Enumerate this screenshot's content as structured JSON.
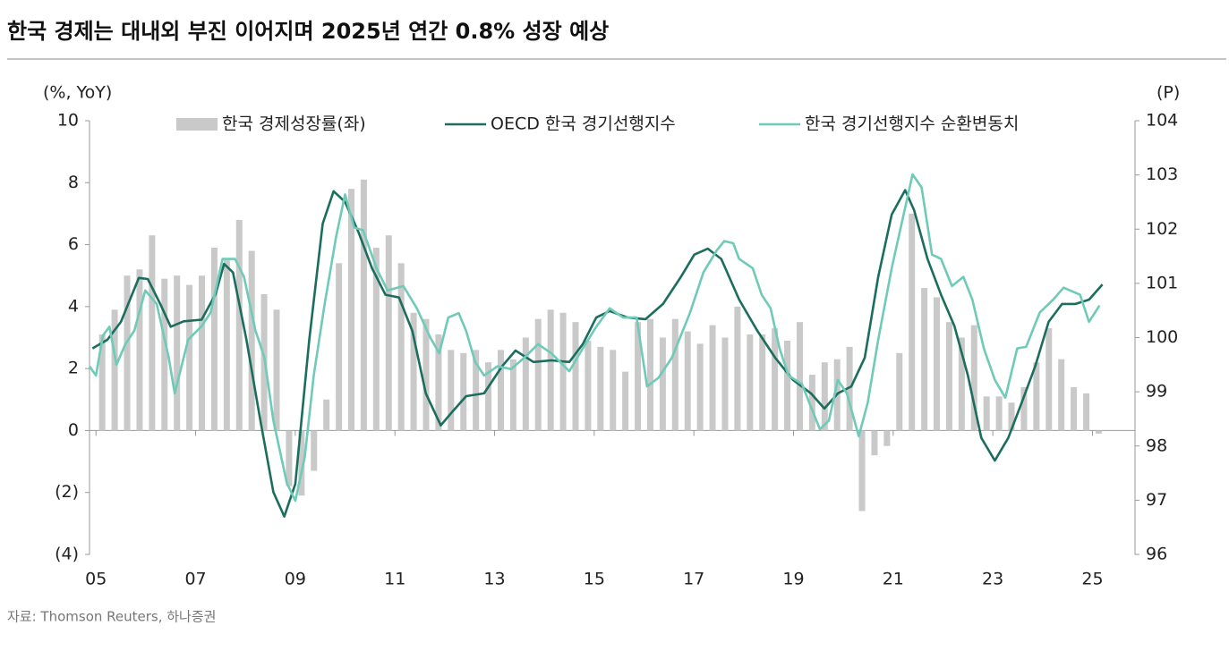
{
  "chart_data": {
    "type": "combo",
    "title": "한국 경제는 대내외 부진 이어지며 2025년 연간 0.8% 성장 예상",
    "y_label": "(%, YoY)",
    "y2_label": "(P)",
    "source": "자료: Thomson Reuters, 하나증권",
    "xlim": [
      2004.87,
      2025.8
    ],
    "xticks": [
      {
        "value": 2005,
        "label": "05"
      },
      {
        "value": 2007,
        "label": "07"
      },
      {
        "value": 2009,
        "label": "09"
      },
      {
        "value": 2011,
        "label": "11"
      },
      {
        "value": 2013,
        "label": "13"
      },
      {
        "value": 2015,
        "label": "15"
      },
      {
        "value": 2017,
        "label": "17"
      },
      {
        "value": 2019,
        "label": "19"
      },
      {
        "value": 2021,
        "label": "21"
      },
      {
        "value": 2023,
        "label": "23"
      },
      {
        "value": 2025,
        "label": "25"
      }
    ],
    "ylim": [
      -4,
      10
    ],
    "yticks": [
      {
        "value": -4,
        "label": "(4)"
      },
      {
        "value": -2,
        "label": "(2)"
      },
      0,
      2,
      4,
      6,
      8,
      10
    ],
    "y2lim": [
      96,
      104
    ],
    "y2ticks": [
      96,
      97,
      98,
      99,
      100,
      101,
      102,
      103,
      104
    ],
    "series": [
      {
        "name": "한국 경제성장률(좌)",
        "type": "bar",
        "color": "#c9c9c9",
        "x": [
          2005.125,
          2005.375,
          2005.625,
          2005.875,
          2006.125,
          2006.375,
          2006.625,
          2006.875,
          2007.125,
          2007.375,
          2007.625,
          2007.875,
          2008.125,
          2008.375,
          2008.625,
          2008.875,
          2009.125,
          2009.375,
          2009.625,
          2009.875,
          2010.125,
          2010.375,
          2010.625,
          2010.875,
          2011.125,
          2011.375,
          2011.625,
          2011.875,
          2012.125,
          2012.375,
          2012.625,
          2012.875,
          2013.125,
          2013.375,
          2013.625,
          2013.875,
          2014.125,
          2014.375,
          2014.625,
          2014.875,
          2015.125,
          2015.375,
          2015.625,
          2015.875,
          2016.125,
          2016.375,
          2016.625,
          2016.875,
          2017.125,
          2017.375,
          2017.625,
          2017.875,
          2018.125,
          2018.375,
          2018.625,
          2018.875,
          2019.125,
          2019.375,
          2019.625,
          2019.875,
          2020.125,
          2020.375,
          2020.625,
          2020.875,
          2021.125,
          2021.375,
          2021.625,
          2021.875,
          2022.125,
          2022.375,
          2022.625,
          2022.875,
          2023.125,
          2023.375,
          2023.625,
          2023.875,
          2024.125,
          2024.375,
          2024.625,
          2024.875,
          2025.125
        ],
        "values": [
          3.1,
          3.9,
          5.0,
          5.2,
          6.3,
          4.9,
          5.0,
          4.7,
          5.0,
          5.9,
          5.5,
          6.8,
          5.8,
          4.4,
          3.9,
          -1.8,
          -2.1,
          -1.3,
          1.0,
          5.4,
          7.8,
          8.1,
          5.9,
          6.3,
          5.4,
          3.8,
          3.6,
          3.1,
          2.6,
          2.5,
          2.6,
          2.2,
          2.6,
          2.3,
          3.0,
          3.6,
          3.9,
          3.8,
          3.5,
          2.9,
          2.7,
          2.6,
          1.9,
          3.5,
          3.6,
          3.0,
          3.6,
          3.2,
          2.8,
          3.4,
          3.0,
          4.0,
          3.1,
          3.1,
          3.3,
          2.9,
          3.5,
          1.8,
          2.2,
          2.3,
          2.7,
          -2.6,
          -0.8,
          -0.5,
          2.5,
          7.0,
          4.6,
          4.3,
          3.5,
          3.0,
          3.4,
          1.1,
          1.1,
          0.9,
          1.4,
          2.2,
          3.3,
          2.3,
          1.4,
          1.2,
          -0.1
        ]
      },
      {
        "name": "OECD 한국 경기선행지수",
        "type": "line",
        "axis": "y2",
        "color": "#1b6e5e",
        "x": [
          2004.93,
          2005.23,
          2005.5,
          2005.86,
          2006.04,
          2006.3,
          2006.5,
          2006.76,
          2007.12,
          2007.4,
          2007.57,
          2007.75,
          2008.02,
          2008.3,
          2008.56,
          2008.78,
          2009.0,
          2009.28,
          2009.55,
          2009.77,
          2010.0,
          2010.27,
          2010.54,
          2010.81,
          2011.08,
          2011.35,
          2011.62,
          2011.92,
          2012.16,
          2012.43,
          2012.79,
          2013.15,
          2013.42,
          2013.78,
          2014.14,
          2014.5,
          2014.77,
          2015.04,
          2015.31,
          2015.67,
          2016.03,
          2016.38,
          2016.74,
          2017.01,
          2017.28,
          2017.55,
          2017.91,
          2018.27,
          2018.63,
          2018.99,
          2019.35,
          2019.62,
          2019.89,
          2020.16,
          2020.43,
          2020.7,
          2020.97,
          2021.24,
          2021.42,
          2021.69,
          2021.96,
          2022.23,
          2022.5,
          2022.77,
          2023.04,
          2023.31,
          2023.58,
          2023.85,
          2024.12,
          2024.39,
          2024.66,
          2024.93,
          2025.2
        ],
        "values": [
          99.8,
          99.96,
          100.29,
          101.1,
          101.08,
          100.6,
          100.2,
          100.3,
          100.33,
          100.8,
          101.36,
          101.2,
          99.96,
          98.47,
          97.15,
          96.7,
          97.3,
          99.96,
          102.1,
          102.7,
          102.5,
          101.94,
          101.28,
          100.79,
          100.74,
          100.12,
          98.97,
          98.38,
          98.64,
          98.92,
          98.97,
          99.47,
          99.76,
          99.55,
          99.58,
          99.55,
          99.88,
          100.37,
          100.49,
          100.37,
          100.34,
          100.62,
          101.12,
          101.53,
          101.64,
          101.45,
          100.7,
          100.13,
          99.63,
          99.22,
          98.97,
          98.69,
          98.97,
          99.1,
          99.63,
          101.12,
          102.27,
          102.72,
          102.35,
          101.45,
          100.79,
          100.21,
          99.3,
          98.15,
          97.73,
          98.15,
          98.8,
          99.47,
          100.29,
          100.62,
          100.62,
          100.7,
          100.98
        ]
      },
      {
        "name": "한국 경기선행지수 순환변동치",
        "type": "line",
        "axis": "y2",
        "color": "#6fcab8",
        "x": [
          2004.87,
          2005.0,
          2005.14,
          2005.27,
          2005.41,
          2005.59,
          2005.77,
          2005.99,
          2006.22,
          2006.46,
          2006.58,
          2006.85,
          2007.12,
          2007.3,
          2007.54,
          2007.79,
          2007.97,
          2008.2,
          2008.38,
          2008.56,
          2008.83,
          2009.0,
          2009.19,
          2009.37,
          2009.59,
          2009.82,
          2010.0,
          2010.18,
          2010.36,
          2010.63,
          2010.85,
          2011.17,
          2011.44,
          2011.71,
          2011.89,
          2012.07,
          2012.28,
          2012.43,
          2012.61,
          2012.79,
          2013.06,
          2013.33,
          2013.6,
          2013.87,
          2014.14,
          2014.5,
          2014.77,
          2015.04,
          2015.31,
          2015.58,
          2015.85,
          2016.06,
          2016.29,
          2016.56,
          2016.92,
          2017.19,
          2017.46,
          2017.61,
          2017.79,
          2017.91,
          2018.18,
          2018.36,
          2018.54,
          2018.72,
          2018.9,
          2019.17,
          2019.35,
          2019.53,
          2019.71,
          2019.89,
          2020.07,
          2020.31,
          2020.49,
          2020.7,
          2020.97,
          2021.21,
          2021.39,
          2021.57,
          2021.78,
          2021.96,
          2022.18,
          2022.41,
          2022.59,
          2022.82,
          2023.04,
          2023.25,
          2023.49,
          2023.67,
          2023.94,
          2024.21,
          2024.42,
          2024.75,
          2024.93,
          2025.14
        ],
        "values": [
          99.47,
          99.3,
          100.04,
          100.2,
          99.5,
          99.88,
          100.13,
          100.87,
          100.62,
          99.63,
          98.97,
          99.96,
          100.21,
          100.46,
          101.45,
          101.45,
          101.12,
          100.13,
          99.63,
          98.47,
          97.32,
          96.99,
          97.8,
          99.3,
          100.62,
          101.86,
          102.64,
          102.03,
          101.98,
          101.28,
          100.87,
          100.95,
          100.54,
          100.0,
          99.71,
          100.37,
          100.45,
          100.12,
          99.55,
          99.3,
          99.47,
          99.42,
          99.63,
          99.88,
          99.71,
          99.38,
          99.8,
          100.2,
          100.54,
          100.37,
          100.37,
          99.1,
          99.26,
          99.63,
          100.45,
          101.2,
          101.61,
          101.78,
          101.74,
          101.45,
          101.28,
          100.79,
          100.54,
          99.8,
          99.3,
          99.14,
          98.72,
          98.31,
          98.47,
          99.22,
          98.97,
          98.18,
          98.8,
          99.96,
          101.28,
          102.27,
          103.01,
          102.77,
          101.53,
          101.45,
          100.95,
          101.12,
          100.7,
          99.8,
          99.22,
          98.89,
          99.8,
          99.83,
          100.46,
          100.7,
          100.92,
          100.79,
          100.29,
          100.59
        ]
      }
    ]
  }
}
